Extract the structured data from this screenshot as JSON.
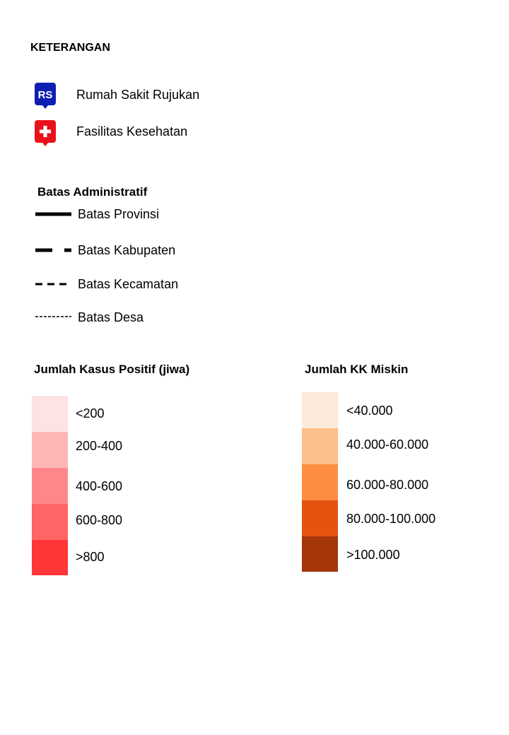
{
  "legend": {
    "title": "KETERANGAN",
    "points": [
      {
        "label": "Rumah Sakit Rujukan",
        "icon": "rs-marker-icon",
        "icon_text": "RS",
        "color": "#0d1fb3"
      },
      {
        "label": "Fasilitas Kesehatan",
        "icon": "health-cross-marker-icon",
        "color": "#e8121a"
      }
    ],
    "admin": {
      "title": "Batas Administratif",
      "lines": [
        {
          "label": "Batas Provinsi"
        },
        {
          "label": "Batas Kabupaten"
        },
        {
          "label": "Batas Kecamatan"
        },
        {
          "label": "Batas Desa"
        }
      ]
    },
    "cases": {
      "title": "Jumlah Kasus Positif (jiwa)",
      "classes": [
        {
          "label": "<200",
          "color": "#fee3e4"
        },
        {
          "label": "200-400",
          "color": "#feb6b7"
        },
        {
          "label": "400-600",
          "color": "#fe8889"
        },
        {
          "label": "600-800",
          "color": "#fe6565"
        },
        {
          "label": ">800",
          "color": "#fe3637"
        }
      ]
    },
    "poverty": {
      "title": "Jumlah KK Miskin",
      "classes": [
        {
          "label": "<40.000",
          "color": "#fdeadb"
        },
        {
          "label": "40.000-60.000",
          "color": "#fcbf8a"
        },
        {
          "label": "60.000-80.000",
          "color": "#fd8e41"
        },
        {
          "label": "80.000-100.000",
          "color": "#e5540f"
        },
        {
          "label": ">100.000",
          "color": "#a43607"
        }
      ]
    }
  }
}
